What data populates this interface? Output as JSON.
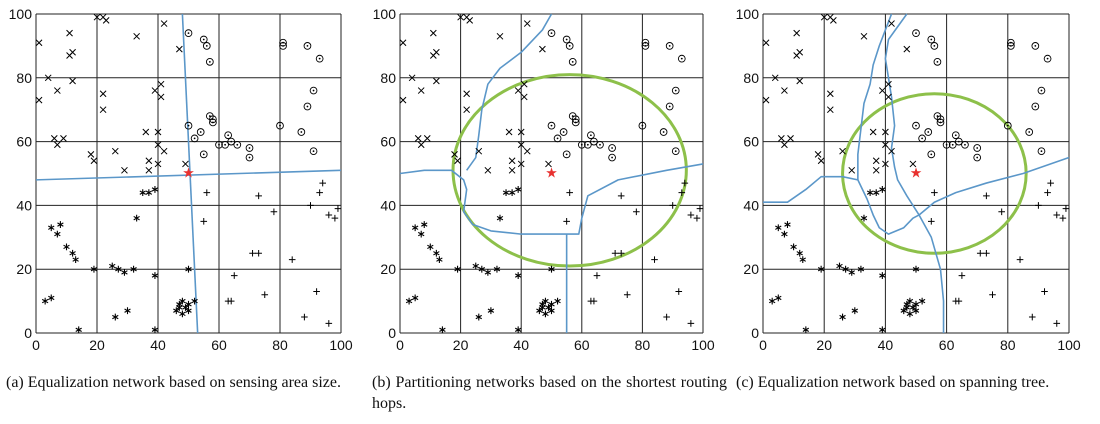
{
  "colors": {
    "boundary": "#5b97c9",
    "region": "#8dc04a",
    "sink": "#e8312f",
    "grid": "#222222"
  },
  "chart_data": [
    {
      "type": "scatter",
      "caption": "(a) Equalization network based on sensing area size.",
      "xlim": [
        0,
        100
      ],
      "ylim": [
        0,
        100
      ],
      "xticks": [
        "0",
        "20",
        "40",
        "60",
        "80",
        "100"
      ],
      "yticks": [
        "0",
        "20",
        "40",
        "60",
        "80",
        "100"
      ],
      "grid": true,
      "marker_series": "shared",
      "sink": [
        50,
        50
      ],
      "boundaries": [
        [
          [
            0,
            48
          ],
          [
            100,
            51
          ]
        ],
        [
          [
            48,
            100
          ],
          [
            53,
            0
          ]
        ]
      ],
      "region": null
    },
    {
      "type": "scatter",
      "caption": "(b) Partitioning networks based on the shortest routing hops.",
      "xlim": [
        0,
        100
      ],
      "ylim": [
        0,
        100
      ],
      "xticks": [
        "0",
        "20",
        "40",
        "60",
        "80",
        "100"
      ],
      "yticks": [
        "0",
        "20",
        "40",
        "60",
        "80",
        "100"
      ],
      "grid": true,
      "marker_series": "shared",
      "sink": [
        50,
        50
      ],
      "boundaries": [
        [
          [
            0,
            50
          ],
          [
            8,
            51
          ],
          [
            17,
            51
          ],
          [
            21,
            48
          ],
          [
            22,
            45
          ],
          [
            21,
            38
          ],
          [
            24,
            34
          ],
          [
            30,
            32
          ],
          [
            40,
            31
          ],
          [
            55,
            31
          ],
          [
            59,
            31
          ],
          [
            60,
            36
          ],
          [
            62,
            43
          ],
          [
            72,
            48
          ],
          [
            88,
            51
          ],
          [
            100,
            53
          ]
        ],
        [
          [
            55,
            31
          ],
          [
            55,
            0
          ]
        ],
        [
          [
            22,
            51
          ],
          [
            25,
            55
          ],
          [
            26,
            62
          ],
          [
            27,
            70
          ],
          [
            29,
            78
          ],
          [
            33,
            83
          ],
          [
            40,
            88
          ],
          [
            47,
            95
          ],
          [
            50,
            100
          ]
        ]
      ],
      "region": {
        "cx": 56,
        "cy": 51,
        "rx": 38.5,
        "ry": 30
      }
    },
    {
      "type": "scatter",
      "caption": "(c) Equalization network based on spanning tree.",
      "xlim": [
        0,
        100
      ],
      "ylim": [
        0,
        100
      ],
      "xticks": [
        "0",
        "20",
        "40",
        "60",
        "80",
        "100"
      ],
      "yticks": [
        "0",
        "20",
        "40",
        "60",
        "80",
        "100"
      ],
      "grid": true,
      "marker_series": "shared",
      "sink": [
        50,
        50
      ],
      "boundaries": [
        [
          [
            0,
            41
          ],
          [
            8,
            41
          ],
          [
            14,
            45
          ],
          [
            19,
            49
          ],
          [
            26,
            49
          ],
          [
            31,
            48
          ],
          [
            34,
            42
          ],
          [
            36,
            37
          ],
          [
            38,
            33
          ],
          [
            41,
            31
          ],
          [
            46,
            33
          ],
          [
            49,
            36
          ],
          [
            51,
            37
          ]
        ],
        [
          [
            51,
            37
          ],
          [
            56,
            41
          ],
          [
            63,
            44
          ],
          [
            73,
            47
          ],
          [
            85,
            50
          ],
          [
            100,
            55
          ]
        ],
        [
          [
            51,
            37
          ],
          [
            55,
            30
          ],
          [
            58,
            20
          ],
          [
            59,
            10
          ],
          [
            59,
            0
          ]
        ],
        [
          [
            47,
            100
          ],
          [
            44,
            96
          ],
          [
            41,
            92
          ],
          [
            40,
            86
          ],
          [
            41,
            80
          ],
          [
            42,
            74
          ],
          [
            43,
            65
          ],
          [
            42,
            58
          ],
          [
            43,
            52
          ],
          [
            44,
            48
          ],
          [
            47,
            43
          ],
          [
            51,
            37
          ]
        ],
        [
          [
            31,
            48
          ],
          [
            31,
            56
          ],
          [
            32,
            64
          ],
          [
            33,
            72
          ],
          [
            35,
            78
          ],
          [
            36,
            84
          ],
          [
            38,
            90
          ],
          [
            40,
            95
          ],
          [
            42,
            100
          ]
        ]
      ],
      "region": {
        "cx": 56,
        "cy": 50,
        "rx": 30,
        "ry": 25
      }
    }
  ],
  "shared_nodes": {
    "x_marks": [
      [
        1,
        91
      ],
      [
        4,
        80
      ],
      [
        1,
        73
      ],
      [
        7,
        76
      ],
      [
        6,
        61
      ],
      [
        7,
        59
      ],
      [
        9,
        61
      ],
      [
        11,
        94
      ],
      [
        11,
        87
      ],
      [
        12,
        88
      ],
      [
        12,
        79
      ],
      [
        18,
        56
      ],
      [
        19,
        54
      ],
      [
        20,
        99
      ],
      [
        22,
        99
      ],
      [
        23,
        98
      ],
      [
        22,
        70
      ],
      [
        22,
        75
      ],
      [
        26,
        57
      ],
      [
        29,
        51
      ],
      [
        33,
        93
      ],
      [
        37,
        51
      ],
      [
        37,
        54
      ],
      [
        36,
        63
      ],
      [
        40,
        63
      ],
      [
        39,
        76
      ],
      [
        41,
        74
      ],
      [
        41,
        78
      ],
      [
        42,
        97
      ],
      [
        40,
        53
      ],
      [
        40,
        59
      ],
      [
        42,
        57
      ],
      [
        47,
        89
      ],
      [
        49,
        53
      ]
    ],
    "o_marks": [
      [
        50,
        65
      ],
      [
        50,
        94
      ],
      [
        55,
        92
      ],
      [
        56,
        90
      ],
      [
        57,
        85
      ],
      [
        54,
        63
      ],
      [
        55,
        56
      ],
      [
        52,
        61
      ],
      [
        60,
        59
      ],
      [
        58,
        67
      ],
      [
        57,
        68
      ],
      [
        58,
        66
      ],
      [
        63,
        62
      ],
      [
        64,
        60
      ],
      [
        66,
        59
      ],
      [
        62,
        59
      ],
      [
        70,
        58
      ],
      [
        70,
        55
      ],
      [
        80,
        65
      ],
      [
        81,
        90
      ],
      [
        81,
        91
      ],
      [
        89,
        90
      ],
      [
        89,
        71
      ],
      [
        91,
        76
      ],
      [
        93,
        86
      ],
      [
        91,
        57
      ],
      [
        87,
        63
      ]
    ],
    "star_marks": [
      [
        3,
        10
      ],
      [
        5,
        11
      ],
      [
        5,
        33
      ],
      [
        7,
        31
      ],
      [
        8,
        34
      ],
      [
        10,
        27
      ],
      [
        12,
        25
      ],
      [
        13,
        23
      ],
      [
        14,
        1
      ],
      [
        19,
        20
      ],
      [
        25,
        21
      ],
      [
        26,
        5
      ],
      [
        27,
        20
      ],
      [
        29,
        19
      ],
      [
        30,
        7
      ],
      [
        32,
        20
      ],
      [
        33,
        36
      ],
      [
        35,
        44
      ],
      [
        37,
        44
      ],
      [
        39,
        18
      ],
      [
        39,
        1
      ],
      [
        39,
        45
      ],
      [
        47,
        9
      ],
      [
        48,
        10
      ],
      [
        48,
        6
      ],
      [
        49,
        8
      ],
      [
        50,
        7
      ],
      [
        50,
        9
      ],
      [
        50,
        20
      ],
      [
        47,
        8
      ],
      [
        46,
        7
      ],
      [
        52,
        10
      ]
    ],
    "plus_marks": [
      [
        55,
        35
      ],
      [
        56,
        44
      ],
      [
        63,
        10
      ],
      [
        64,
        10
      ],
      [
        65,
        18
      ],
      [
        71,
        25
      ],
      [
        73,
        25
      ],
      [
        73,
        43
      ],
      [
        75,
        12
      ],
      [
        78,
        38
      ],
      [
        84,
        23
      ],
      [
        88,
        5
      ],
      [
        90,
        40
      ],
      [
        92,
        13
      ],
      [
        93,
        44
      ],
      [
        94,
        47
      ],
      [
        96,
        37
      ],
      [
        96,
        3
      ],
      [
        98,
        36
      ],
      [
        99,
        39
      ]
    ]
  }
}
